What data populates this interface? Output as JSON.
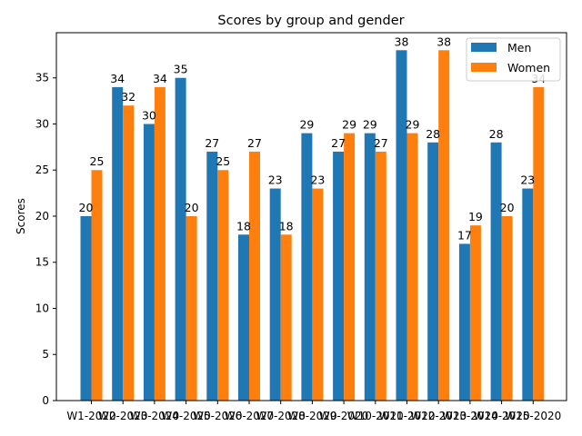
{
  "chart_data": {
    "type": "bar",
    "title": "Scores by group and gender",
    "xlabel": "",
    "ylabel": "Scores",
    "ylim": [
      0,
      39.9
    ],
    "yticks": [
      0,
      5,
      10,
      15,
      20,
      25,
      30,
      35
    ],
    "categories": [
      "W1-2020",
      "W2-2020",
      "W3-2020",
      "W4-2020",
      "W5-2020",
      "W6-2020",
      "W7-2020",
      "W8-2020",
      "W9-2020",
      "W10-2020",
      "W11-2020",
      "W12-2020",
      "W13-2020",
      "W14-2020",
      "W15-2020"
    ],
    "series": [
      {
        "name": "Men",
        "color": "#1f77b4",
        "values": [
          20,
          34,
          30,
          35,
          27,
          18,
          23,
          29,
          27,
          29,
          38,
          28,
          17,
          28,
          23
        ]
      },
      {
        "name": "Women",
        "color": "#ff7f0e",
        "values": [
          25,
          32,
          34,
          20,
          25,
          27,
          18,
          23,
          29,
          27,
          29,
          38,
          19,
          20,
          34
        ]
      }
    ],
    "legend_position": "top-right",
    "grid": false
  }
}
